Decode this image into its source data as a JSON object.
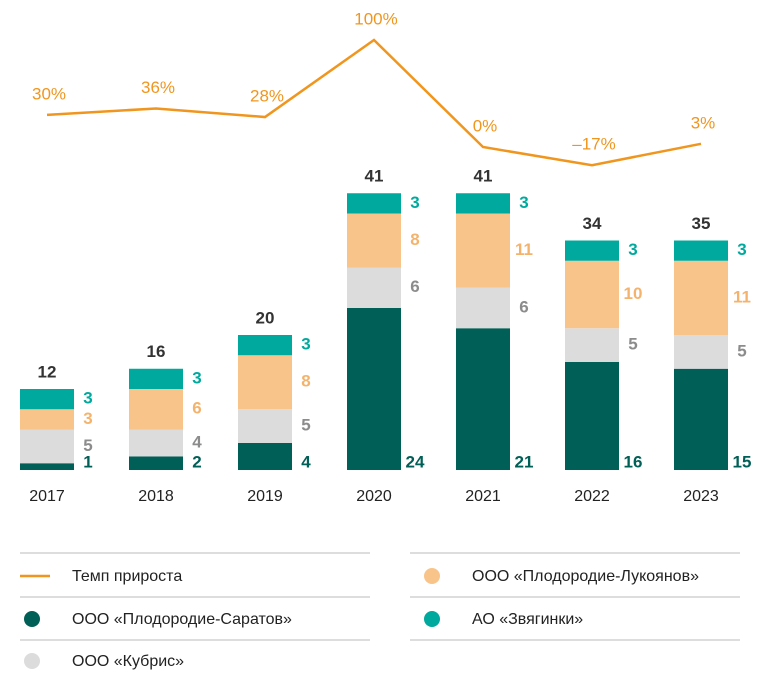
{
  "chart_data": {
    "type": "bar",
    "stacked": true,
    "categories": [
      "2017",
      "2018",
      "2019",
      "2020",
      "2021",
      "2022",
      "2023"
    ],
    "series": [
      {
        "name": "ООО «Плодородие-Саратов»",
        "color": "#005f56",
        "label_color": "#005f56",
        "values": [
          1,
          2,
          4,
          24,
          21,
          16,
          15
        ]
      },
      {
        "name": "ООО «Кубрис»",
        "color": "#dcdcdc",
        "label_color": "#8c8c8c",
        "values": [
          5,
          4,
          5,
          6,
          6,
          5,
          5
        ]
      },
      {
        "name": "ООО «Плодородие-Лукоянов»",
        "color": "#f9c48a",
        "label_color": "#f4b36c",
        "values": [
          3,
          6,
          8,
          8,
          11,
          10,
          11
        ]
      },
      {
        "name": "АО «Звягинки»",
        "color": "#00a99d",
        "label_color": "#00a99d",
        "values": [
          3,
          3,
          3,
          3,
          3,
          3,
          3
        ]
      }
    ],
    "totals": [
      12,
      16,
      20,
      41,
      41,
      34,
      35
    ],
    "line": {
      "name": "Темп прироста",
      "color": "#f0961e",
      "values": [
        30,
        36,
        28,
        100,
        0,
        -17,
        3
      ],
      "value_labels": [
        "30%",
        "36%",
        "28%",
        "100%",
        "0%",
        "–17%",
        "3%"
      ]
    }
  }
}
